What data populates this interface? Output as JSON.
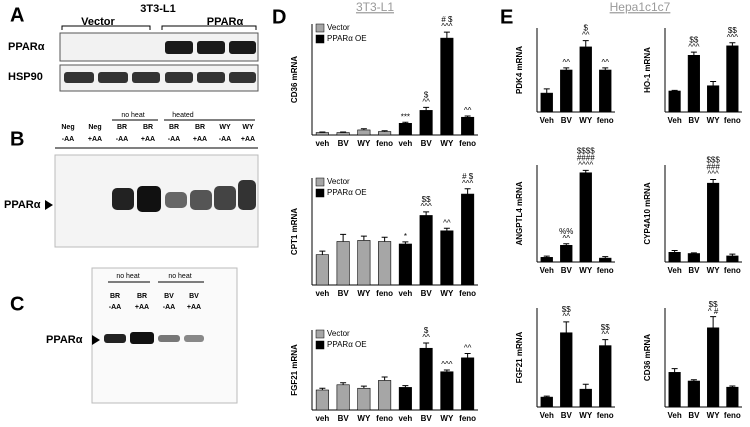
{
  "panels": {
    "A": {
      "label": "A",
      "cell": "3T3-L1",
      "groups": [
        "Vector",
        "PPARα"
      ],
      "rows": [
        "PPARα",
        "HSP90"
      ]
    },
    "B": {
      "label": "B",
      "groups": [
        "no heat",
        "heated"
      ],
      "lanes": [
        [
          "Neg",
          "-AA"
        ],
        [
          "Neg",
          "+AA"
        ],
        [
          "BR",
          "-AA"
        ],
        [
          "BR",
          "+AA"
        ],
        [
          "BR",
          "-AA"
        ],
        [
          "BR",
          "+AA"
        ],
        [
          "WY",
          "-AA"
        ],
        [
          "WY",
          "+AA"
        ]
      ],
      "band": "PPARα"
    },
    "C": {
      "label": "C",
      "groups": [
        "no heat",
        "no heat"
      ],
      "lanes": [
        [
          "BR",
          "-AA"
        ],
        [
          "BR",
          "+AA"
        ],
        [
          "BV",
          "-AA"
        ],
        [
          "BV",
          "+AA"
        ]
      ],
      "band": "PPARα"
    },
    "D": {
      "label": "D",
      "title": "3T3-L1"
    },
    "E": {
      "label": "E",
      "title": "Hepa1c1c7"
    }
  },
  "chart_data": [
    {
      "type": "bar",
      "y_label": "CD36 mRNA",
      "categories": [
        "veh",
        "BV",
        "WY",
        "feno",
        "veh",
        "BV",
        "WY",
        "feno"
      ],
      "ylim": [
        0,
        55
      ],
      "legend": "upper left",
      "series": [
        {
          "name": "Vector",
          "color": "#a6a6a6",
          "values": [
            1.2,
            1.2,
            2.5,
            1.7,
            null,
            null,
            null,
            null
          ],
          "errors": [
            0.3,
            0.3,
            0.6,
            0.4,
            null,
            null,
            null,
            null
          ]
        },
        {
          "name": "PPARα OE",
          "color": "#000000",
          "values": [
            null,
            null,
            null,
            null,
            5.8,
            12.2,
            48,
            8.8
          ],
          "errors": [
            null,
            null,
            null,
            null,
            0.5,
            1.5,
            3,
            0.6
          ]
        }
      ],
      "annotations": [
        null,
        null,
        null,
        null,
        [
          "***"
        ],
        [
          "$",
          "^^"
        ],
        [
          "# $",
          "^^^"
        ],
        [
          "^^"
        ]
      ]
    },
    {
      "type": "bar",
      "y_label": "CPT1 mRNA",
      "categories": [
        "veh",
        "BV",
        "WY",
        "feno",
        "veh",
        "BV",
        "WY",
        "feno"
      ],
      "ylim": [
        0,
        3
      ],
      "legend": "upper left",
      "series": [
        {
          "name": "Vector",
          "color": "#a6a6a6",
          "values": [
            0.85,
            1.22,
            1.25,
            1.22,
            null,
            null,
            null,
            null
          ],
          "errors": [
            0.1,
            0.2,
            0.12,
            0.12,
            null,
            null,
            null,
            null
          ]
        },
        {
          "name": "PPARα OE",
          "color": "#000000",
          "values": [
            null,
            null,
            null,
            null,
            1.15,
            1.95,
            1.52,
            2.55
          ],
          "errors": [
            null,
            null,
            null,
            null,
            0.06,
            0.1,
            0.07,
            0.15
          ]
        }
      ],
      "annotations": [
        null,
        null,
        null,
        null,
        [
          "*"
        ],
        [
          "$$",
          "^^^"
        ],
        [
          "^^"
        ],
        [
          "# $",
          "^^^"
        ]
      ]
    },
    {
      "type": "bar",
      "y_label": "FGF21 mRNA",
      "categories": [
        "veh",
        "BV",
        "WY",
        "feno",
        "veh",
        "BV",
        "WY",
        "feno"
      ],
      "ylim": [
        0,
        4.6
      ],
      "legend": "upper left",
      "series": [
        {
          "name": "Vector",
          "color": "#a6a6a6",
          "values": [
            1.15,
            1.45,
            1.25,
            1.7,
            null,
            null,
            null,
            null
          ],
          "errors": [
            0.1,
            0.12,
            0.12,
            0.2,
            null,
            null,
            null,
            null
          ]
        },
        {
          "name": "PPARα OE",
          "color": "#000000",
          "values": [
            null,
            null,
            null,
            null,
            1.3,
            3.55,
            2.2,
            3.0
          ],
          "errors": [
            null,
            null,
            null,
            null,
            0.1,
            0.3,
            0.1,
            0.25
          ]
        }
      ],
      "annotations": [
        null,
        null,
        null,
        null,
        null,
        [
          "$",
          "^^"
        ],
        [
          "^^^"
        ],
        [
          "^^"
        ]
      ]
    },
    {
      "type": "bar",
      "y_label": "PDK4 mRNA",
      "categories": [
        "Veh",
        "BV",
        "WY",
        "feno"
      ],
      "ylim": [
        0,
        4
      ],
      "series": [
        {
          "name": null,
          "color": "#000000",
          "values": [
            0.9,
            2.0,
            3.1,
            2.0
          ],
          "errors": [
            0.2,
            0.1,
            0.3,
            0.1
          ]
        }
      ],
      "annotations": [
        null,
        [
          "^^"
        ],
        [
          "$",
          "^^"
        ],
        [
          "^^"
        ]
      ]
    },
    {
      "type": "bar",
      "y_label": "HO-1 mRNA",
      "categories": [
        "Veh",
        "BV",
        "WY",
        "feno"
      ],
      "ylim": [
        0,
        4
      ],
      "series": [
        {
          "name": null,
          "color": "#000000",
          "values": [
            1.0,
            2.7,
            1.25,
            3.15
          ],
          "errors": [
            0.03,
            0.15,
            0.2,
            0.15
          ]
        }
      ],
      "annotations": [
        null,
        [
          "$$",
          "^^^"
        ],
        null,
        [
          "$$",
          "^^^"
        ]
      ]
    },
    {
      "type": "bar",
      "y_label": "ANGPTL4 mRNA",
      "categories": [
        "Veh",
        "BV",
        "WY",
        "feno"
      ],
      "ylim": [
        0,
        25
      ],
      "series": [
        {
          "name": null,
          "color": "#000000",
          "values": [
            1.2,
            4.3,
            23,
            1.0
          ],
          "errors": [
            0.3,
            0.4,
            0.6,
            0.4
          ]
        }
      ],
      "annotations": [
        null,
        [
          "%%",
          "^^"
        ],
        [
          "$$$$",
          "####",
          "^^^^"
        ],
        null
      ]
    },
    {
      "type": "bar",
      "y_label": "CYP4A10 mRNA",
      "categories": [
        "Veh",
        "BV",
        "WY",
        "feno"
      ],
      "ylim": [
        0,
        8
      ],
      "series": [
        {
          "name": null,
          "color": "#000000",
          "values": [
            0.8,
            0.7,
            6.5,
            0.5
          ],
          "errors": [
            0.15,
            0.05,
            0.3,
            0.15
          ]
        }
      ],
      "annotations": [
        null,
        null,
        [
          "$$$",
          "###",
          "^^^"
        ],
        null
      ]
    },
    {
      "type": "bar",
      "y_label": "FGF21 mRNA",
      "categories": [
        "Veh",
        "BV",
        "WY",
        "feno"
      ],
      "ylim": [
        0,
        10
      ],
      "series": [
        {
          "name": null,
          "color": "#000000",
          "values": [
            1.0,
            7.5,
            1.8,
            6.2
          ],
          "errors": [
            0.1,
            1.1,
            0.5,
            0.6
          ]
        }
      ],
      "annotations": [
        null,
        [
          "$$",
          "^^"
        ],
        null,
        [
          "$$",
          "^^"
        ]
      ]
    },
    {
      "type": "bar",
      "y_label": "CD36 mRNA",
      "categories": [
        "Veh",
        "BV",
        "WY",
        "feno"
      ],
      "ylim": [
        0,
        4
      ],
      "series": [
        {
          "name": null,
          "color": "#000000",
          "values": [
            1.4,
            1.05,
            3.2,
            0.8
          ],
          "errors": [
            0.15,
            0.05,
            0.45,
            0.05
          ]
        }
      ],
      "annotations": [
        null,
        null,
        [
          "$$",
          "^  #"
        ],
        null
      ]
    }
  ]
}
